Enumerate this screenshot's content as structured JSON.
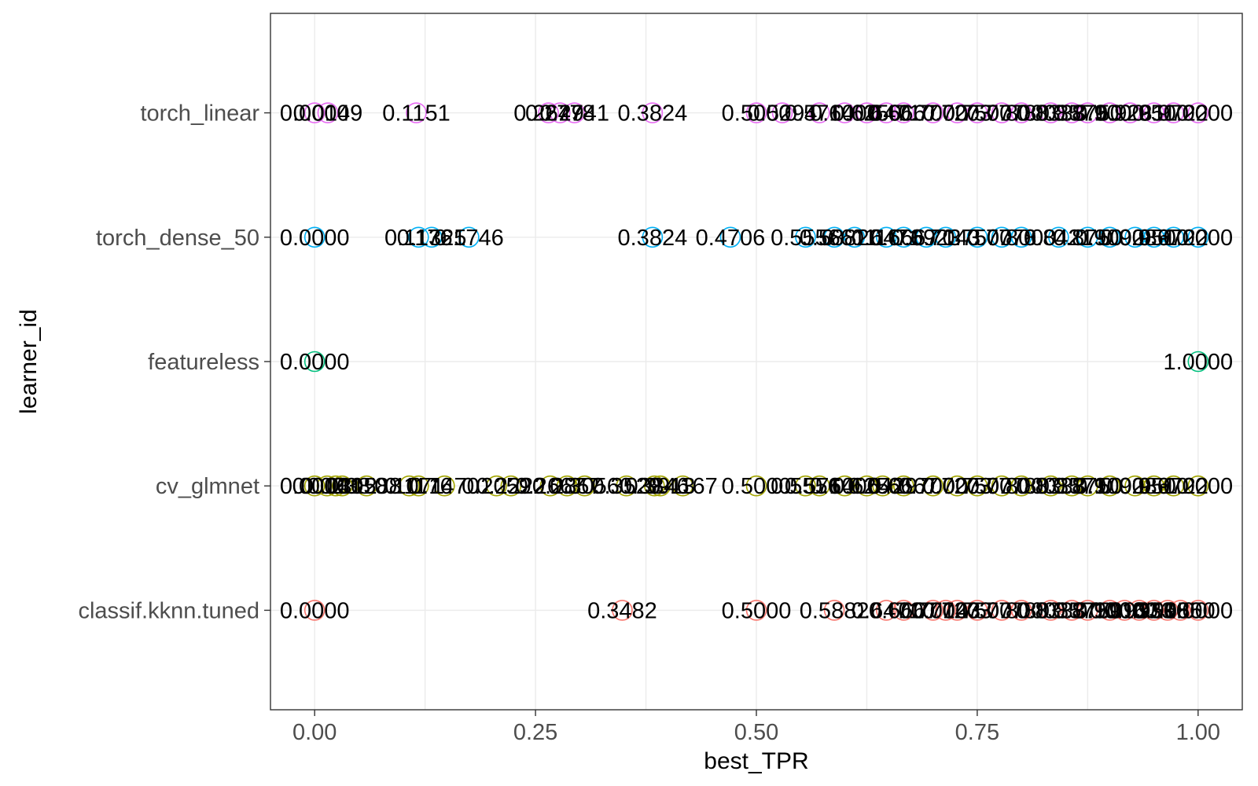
{
  "chart_data": {
    "type": "scatter",
    "title": "",
    "xlabel": "best_TPR",
    "ylabel": "learner_id",
    "xlim": [
      -0.05,
      1.05
    ],
    "x_ticks": [
      {
        "value": 0.0,
        "label": "0.00"
      },
      {
        "value": 0.25,
        "label": "0.25"
      },
      {
        "value": 0.5,
        "label": "0.50"
      },
      {
        "value": 0.75,
        "label": "0.75"
      },
      {
        "value": 1.0,
        "label": "1.00"
      }
    ],
    "categories": [
      "classif.kknn.tuned",
      "cv_glmnet",
      "featureless",
      "torch_dense_50",
      "torch_linear"
    ],
    "grid": true,
    "legend": "none",
    "marker": "open-circle",
    "series": [
      {
        "category": "classif.kknn.tuned",
        "color": "#F8766D",
        "points": [
          {
            "x": 0.0,
            "label": "0.0000"
          },
          {
            "x": 0.3482,
            "label": "0.3482"
          },
          {
            "x": 0.5,
            "label": "0.5000"
          },
          {
            "x": 0.5882,
            "label": "0.5882"
          },
          {
            "x": 0.6471,
            "label": "0.6471"
          },
          {
            "x": 0.6667,
            "label": "0.6667"
          },
          {
            "x": 0.7,
            "label": "0.7000"
          },
          {
            "x": 0.7143,
            "label": "0.7143"
          },
          {
            "x": 0.7273,
            "label": "0.7273"
          },
          {
            "x": 0.75,
            "label": "0.7500"
          },
          {
            "x": 0.7778,
            "label": "0.7778"
          },
          {
            "x": 0.8,
            "label": "0.8000"
          },
          {
            "x": 0.8333,
            "label": "0.8333"
          },
          {
            "x": 0.8571,
            "label": "0.8571"
          },
          {
            "x": 0.875,
            "label": "0.8750"
          },
          {
            "x": 0.9,
            "label": "0.9000"
          },
          {
            "x": 0.9167,
            "label": "0.9167"
          },
          {
            "x": 0.9333,
            "label": "0.9333"
          },
          {
            "x": 0.95,
            "label": "0.9500"
          },
          {
            "x": 0.9655,
            "label": "0.9655"
          },
          {
            "x": 0.98,
            "label": "0.9800"
          },
          {
            "x": 1.0,
            "label": "1.0000"
          }
        ]
      },
      {
        "category": "cv_glmnet",
        "color": "#A3A500",
        "points": [
          {
            "x": 0.0,
            "label": "0.0000"
          },
          {
            "x": 0.0141,
            "label": "0.0141"
          },
          {
            "x": 0.0238,
            "label": "0.0238"
          },
          {
            "x": 0.0312,
            "label": "0.0312"
          },
          {
            "x": 0.0588,
            "label": "0.0588"
          },
          {
            "x": 0.1071,
            "label": "0.1071"
          },
          {
            "x": 0.1176,
            "label": "0.1176"
          },
          {
            "x": 0.147,
            "label": "0.1470"
          },
          {
            "x": 0.2059,
            "label": "0.2059"
          },
          {
            "x": 0.2222,
            "label": "0.2222"
          },
          {
            "x": 0.2667,
            "label": "0.2667"
          },
          {
            "x": 0.2857,
            "label": "0.2857"
          },
          {
            "x": 0.3056,
            "label": "0.3056"
          },
          {
            "x": 0.3529,
            "label": "0.3529"
          },
          {
            "x": 0.3846,
            "label": "0.3846"
          },
          {
            "x": 0.3913,
            "label": "0.3913"
          },
          {
            "x": 0.4167,
            "label": "0.4167"
          },
          {
            "x": 0.5,
            "label": "0.5000"
          },
          {
            "x": 0.5556,
            "label": "0.5556"
          },
          {
            "x": 0.5714,
            "label": "0.5714"
          },
          {
            "x": 0.6,
            "label": "0.6000"
          },
          {
            "x": 0.625,
            "label": "0.6250"
          },
          {
            "x": 0.6429,
            "label": "0.6429"
          },
          {
            "x": 0.6667,
            "label": "0.6667"
          },
          {
            "x": 0.7,
            "label": "0.7000"
          },
          {
            "x": 0.7273,
            "label": "0.7273"
          },
          {
            "x": 0.75,
            "label": "0.7500"
          },
          {
            "x": 0.7778,
            "label": "0.7778"
          },
          {
            "x": 0.8,
            "label": "0.8000"
          },
          {
            "x": 0.8333,
            "label": "0.8333"
          },
          {
            "x": 0.8571,
            "label": "0.8571"
          },
          {
            "x": 0.875,
            "label": "0.8750"
          },
          {
            "x": 0.9,
            "label": "0.9000"
          },
          {
            "x": 0.9286,
            "label": "0.9286"
          },
          {
            "x": 0.95,
            "label": "0.9500"
          },
          {
            "x": 0.9722,
            "label": "0.9722"
          },
          {
            "x": 1.0,
            "label": "1.0000"
          }
        ]
      },
      {
        "category": "featureless",
        "color": "#00BF7D",
        "points": [
          {
            "x": 0.0,
            "label": "0.0000"
          },
          {
            "x": 1.0,
            "label": "1.0000"
          }
        ]
      },
      {
        "category": "torch_dense_50",
        "color": "#00B0F6",
        "points": [
          {
            "x": 0.0,
            "label": "0.0000"
          },
          {
            "x": 0.1176,
            "label": "0.1176"
          },
          {
            "x": 0.1325,
            "label": "0.1325"
          },
          {
            "x": 0.1746,
            "label": "0.1746"
          },
          {
            "x": 0.3824,
            "label": "0.3824"
          },
          {
            "x": 0.4706,
            "label": "0.4706"
          },
          {
            "x": 0.5556,
            "label": "0.5556"
          },
          {
            "x": 0.5882,
            "label": "0.5882"
          },
          {
            "x": 0.6111,
            "label": "0.6111"
          },
          {
            "x": 0.6471,
            "label": "0.6471"
          },
          {
            "x": 0.6667,
            "label": "0.6667"
          },
          {
            "x": 0.6923,
            "label": "0.6923"
          },
          {
            "x": 0.7143,
            "label": "0.7143"
          },
          {
            "x": 0.75,
            "label": "0.7500"
          },
          {
            "x": 0.7778,
            "label": "0.7778"
          },
          {
            "x": 0.8,
            "label": "0.8000"
          },
          {
            "x": 0.8421,
            "label": "0.8421"
          },
          {
            "x": 0.875,
            "label": "0.8750"
          },
          {
            "x": 0.9,
            "label": "0.9000"
          },
          {
            "x": 0.9286,
            "label": "0.9286"
          },
          {
            "x": 0.95,
            "label": "0.9500"
          },
          {
            "x": 0.9722,
            "label": "0.9722"
          },
          {
            "x": 1.0,
            "label": "1.0000"
          }
        ]
      },
      {
        "category": "torch_linear",
        "color": "#E76BF3",
        "points": [
          {
            "x": 0.0,
            "label": "0.0000"
          },
          {
            "x": 0.0149,
            "label": "0.0149"
          },
          {
            "x": 0.1151,
            "label": "0.1151"
          },
          {
            "x": 0.2647,
            "label": "0.2647"
          },
          {
            "x": 0.2778,
            "label": "0.2778"
          },
          {
            "x": 0.2941,
            "label": "0.2941"
          },
          {
            "x": 0.3824,
            "label": "0.3824"
          },
          {
            "x": 0.5,
            "label": "0.5000"
          },
          {
            "x": 0.5294,
            "label": "0.5294"
          },
          {
            "x": 0.5714,
            "label": "0.5714"
          },
          {
            "x": 0.6,
            "label": "0.6000"
          },
          {
            "x": 0.625,
            "label": "0.6250"
          },
          {
            "x": 0.6471,
            "label": "0.6471"
          },
          {
            "x": 0.6667,
            "label": "0.6667"
          },
          {
            "x": 0.7,
            "label": "0.7000"
          },
          {
            "x": 0.7273,
            "label": "0.7273"
          },
          {
            "x": 0.75,
            "label": "0.7500"
          },
          {
            "x": 0.7778,
            "label": "0.7778"
          },
          {
            "x": 0.8,
            "label": "0.8000"
          },
          {
            "x": 0.8333,
            "label": "0.8333"
          },
          {
            "x": 0.8571,
            "label": "0.8571"
          },
          {
            "x": 0.875,
            "label": "0.8750"
          },
          {
            "x": 0.9,
            "label": "0.9000"
          },
          {
            "x": 0.9231,
            "label": "0.9231"
          },
          {
            "x": 0.95,
            "label": "0.9500"
          },
          {
            "x": 0.9722,
            "label": "0.9722"
          },
          {
            "x": 1.0,
            "label": "1.0000"
          }
        ]
      }
    ]
  }
}
